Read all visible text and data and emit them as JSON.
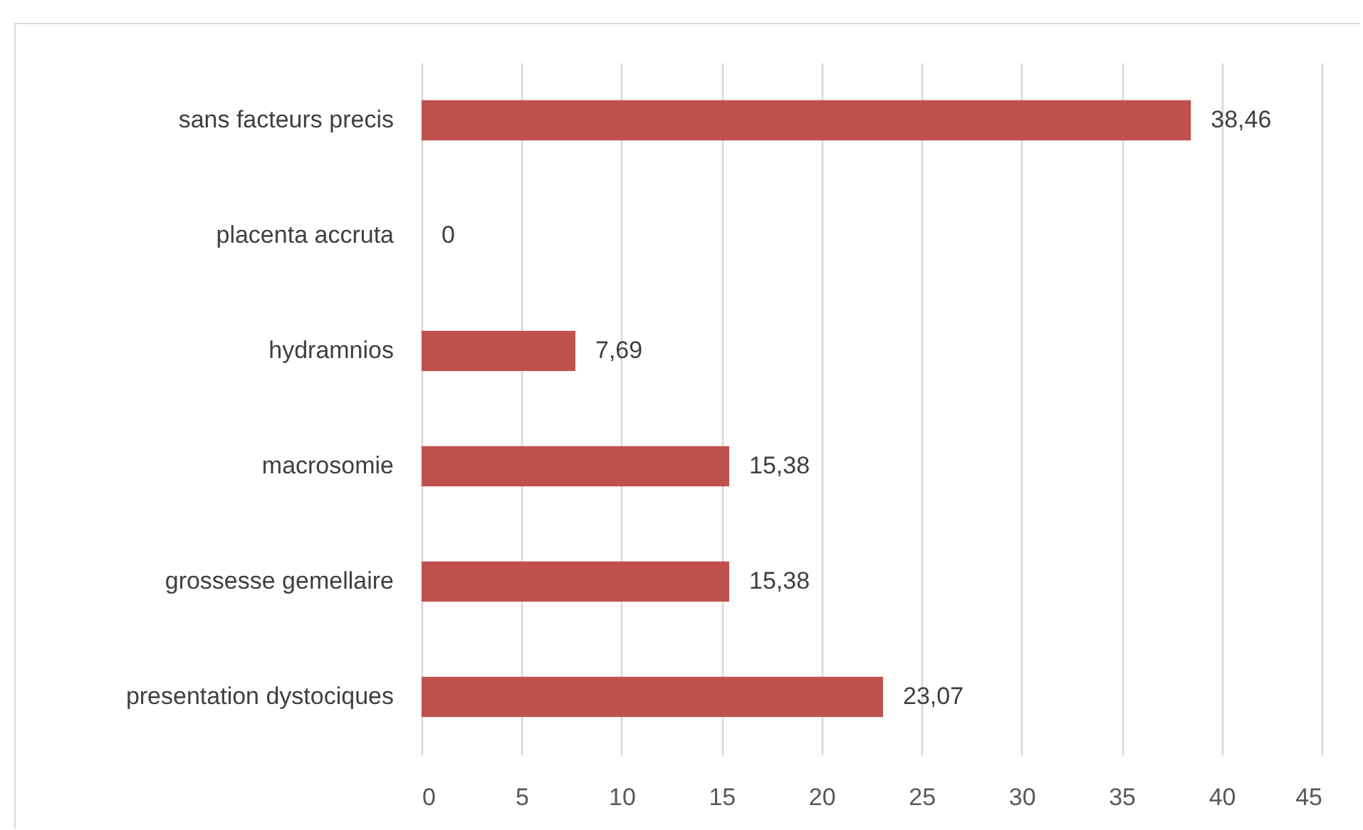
{
  "chart_data": {
    "type": "bar",
    "orientation": "horizontal",
    "categories": [
      "sans facteurs precis",
      "placenta accruta",
      "hydramnios",
      "macrosomie",
      "grossesse gemellaire",
      "presentation dystociques"
    ],
    "values": [
      38.46,
      0,
      7.69,
      15.38,
      15.38,
      23.07
    ],
    "value_labels": [
      "38,46",
      "0",
      "7,69",
      "15,38",
      "15,38",
      "23,07"
    ],
    "color": "#c0504d",
    "xlim": [
      0,
      45
    ],
    "xticks": [
      0,
      5,
      10,
      15,
      20,
      25,
      30,
      35,
      40,
      45
    ],
    "grid": "x"
  }
}
